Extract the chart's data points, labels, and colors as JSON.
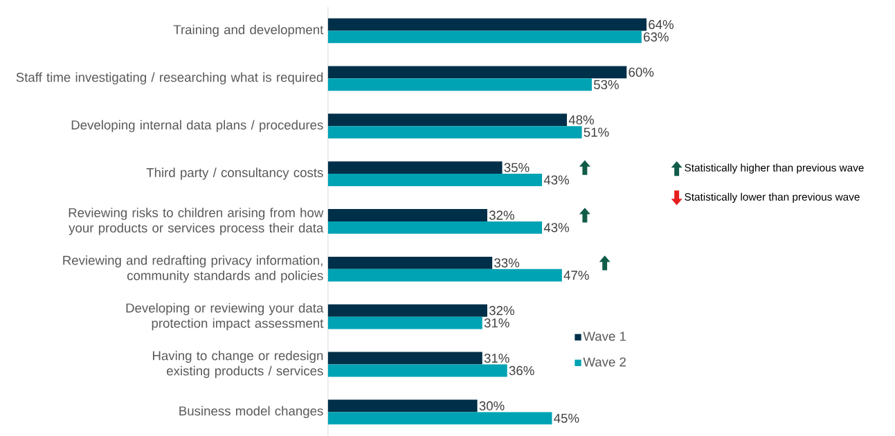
{
  "chart_data": {
    "type": "bar",
    "orientation": "horizontal",
    "categories": [
      "Training and development",
      "Staff time investigating / researching what is required",
      "Developing internal data plans / procedures",
      "Third party / consultancy costs",
      "Reviewing risks to children arising from how your products or services process their data",
      "Reviewing and redrafting privacy information, community standards and policies",
      "Developing or reviewing your data protection impact assessment",
      "Having to change or redesign existing products / services",
      "Business model changes"
    ],
    "series": [
      {
        "name": "Wave 1",
        "color": "#003049",
        "values": [
          64,
          60,
          48,
          35,
          32,
          33,
          32,
          31,
          30
        ],
        "value_labels": [
          "64%",
          "60%",
          "48%",
          "35%",
          "32%",
          "33%",
          "32%",
          "31%",
          "30%"
        ]
      },
      {
        "name": "Wave 2",
        "color": "#00a3b4",
        "values": [
          63,
          53,
          51,
          43,
          43,
          47,
          31,
          36,
          45
        ],
        "value_labels": [
          "63%",
          "53%",
          "51%",
          "43%",
          "43%",
          "47%",
          "31%",
          "36%",
          "45%"
        ]
      }
    ],
    "legend": "right",
    "annotations": [
      "Statistically higher than previous wave",
      "Statistically lower than previous wave"
    ]
  }
}
